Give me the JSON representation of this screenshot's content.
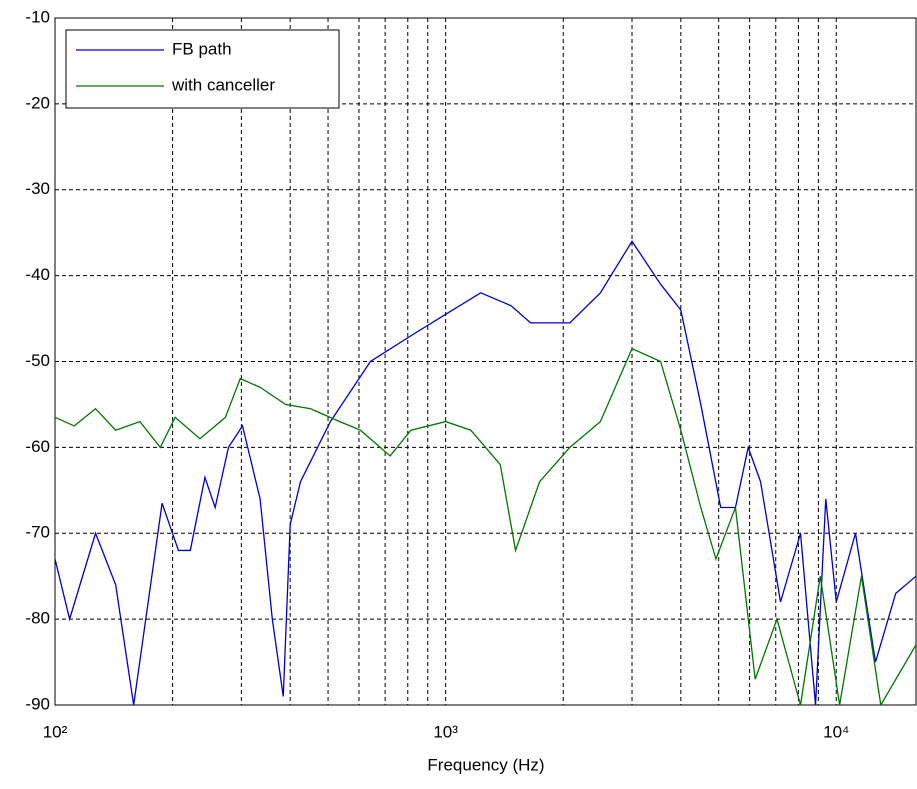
{
  "chart_data": {
    "type": "line",
    "xlabel": "Frequency (Hz)",
    "xscale": "log",
    "xlim": [
      100,
      16000
    ],
    "ylim": [
      -90,
      -10
    ],
    "xticks": [
      {
        "value": 100,
        "label": "10²"
      },
      {
        "value": 1000,
        "label": "10³"
      },
      {
        "value": 10000,
        "label": "10⁴"
      }
    ],
    "xminorticks": [
      200,
      300,
      400,
      500,
      600,
      700,
      800,
      900,
      2000,
      3000,
      4000,
      5000,
      6000,
      7000,
      8000,
      9000
    ],
    "yticks": [
      -90,
      -80,
      -70,
      -60,
      -50,
      -40,
      -30,
      -20,
      -10
    ],
    "grid": true,
    "legend": "upper left",
    "series": [
      {
        "name": "FB path",
        "color": "#0000cc",
        "x": [
          100,
          109,
          127,
          143,
          159,
          188,
          207,
          222,
          242,
          257,
          278,
          302,
          335,
          360,
          384,
          400,
          425,
          507,
          642,
          815,
          1000,
          1230,
          1470,
          1650,
          2080,
          2490,
          3000,
          3550,
          4000,
          4500,
          5060,
          5520,
          5950,
          6400,
          7200,
          8100,
          8850,
          9400,
          10000,
          11200,
          12600,
          14200,
          16000
        ],
        "values": [
          -73,
          -80,
          -70,
          -76,
          -90,
          -66.5,
          -72,
          -72,
          -63.5,
          -67,
          -60,
          -57.5,
          -66,
          -80,
          -89,
          -69,
          -64,
          -57,
          -50,
          -47,
          -44.5,
          -42,
          -43.5,
          -45.5,
          -45.5,
          -42,
          -36,
          -41,
          -44,
          -55,
          -67,
          -67,
          -60,
          -64,
          -78,
          -70,
          -90,
          -66,
          -78,
          -70,
          -85,
          -77,
          -75
        ]
      },
      {
        "name": "with canceller",
        "color": "#007700",
        "x": [
          100,
          112,
          127,
          143,
          165,
          186,
          203,
          235,
          273,
          298,
          335,
          389,
          451,
          536,
          605,
          721,
          815,
          1000,
          1160,
          1380,
          1510,
          1740,
          2080,
          2490,
          3000,
          3550,
          4000,
          4500,
          4920,
          5520,
          6200,
          7050,
          8100,
          9100,
          10200,
          11600,
          13000,
          16000
        ],
        "values": [
          -56.5,
          -57.5,
          -55.5,
          -58,
          -57,
          -60,
          -56.5,
          -59,
          -56.5,
          -52,
          -53,
          -55,
          -55.5,
          -57,
          -58,
          -61,
          -58,
          -57,
          -58,
          -62,
          -72,
          -64,
          -60,
          -57,
          -48.5,
          -50,
          -58,
          -67,
          -73,
          -67,
          -87,
          -80,
          -90,
          -75,
          -90,
          -75,
          -90,
          -83
        ]
      }
    ]
  }
}
